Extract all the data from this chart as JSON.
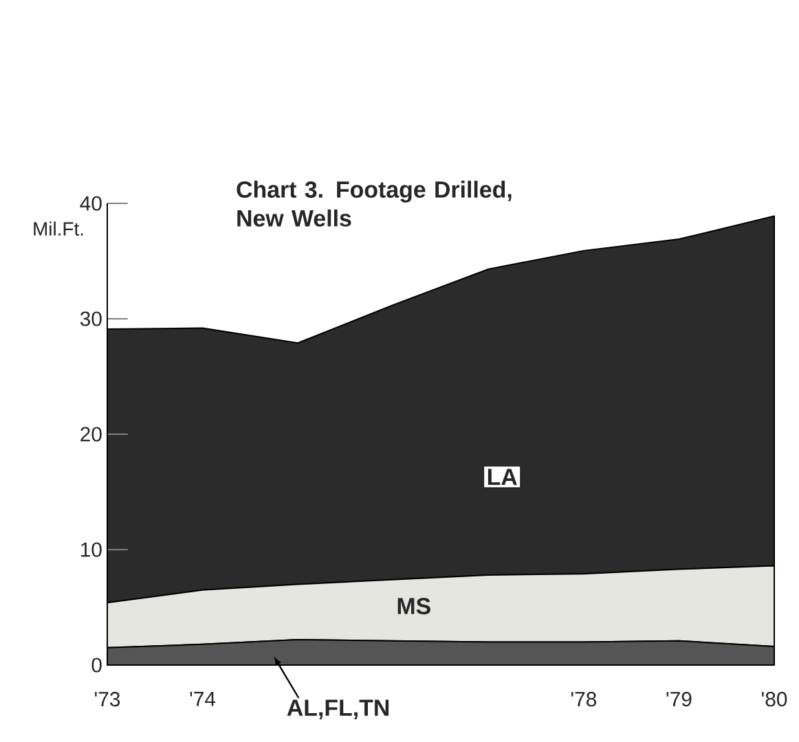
{
  "chart_data": {
    "type": "area",
    "stacked": true,
    "title": "Chart 3. Footage Drilled, New Wells",
    "ylabel": "Mil.Ft.",
    "x": [
      1973,
      1974,
      1975,
      1976,
      1977,
      1978,
      1979,
      1980
    ],
    "xlim": [
      1973,
      1980
    ],
    "ylim": [
      0,
      40
    ],
    "yticks": [
      0,
      10,
      20,
      30,
      40
    ],
    "xticks": [
      {
        "value": 1973,
        "label": "'73"
      },
      {
        "value": 1974,
        "label": "'74"
      },
      {
        "value": 1978,
        "label": "'78"
      },
      {
        "value": 1979,
        "label": "'79"
      },
      {
        "value": 1980,
        "label": "'80"
      }
    ],
    "series": [
      {
        "name": "AL,FL,TN",
        "color": "#555555",
        "values": [
          1.5,
          1.8,
          2.2,
          2.1,
          2.0,
          2.0,
          2.1,
          1.6
        ]
      },
      {
        "name": "MS",
        "color": "#e6e6e0",
        "values": [
          3.9,
          4.7,
          4.8,
          5.3,
          5.8,
          5.9,
          6.2,
          7.0
        ]
      },
      {
        "name": "LA",
        "color": "#2b2b2b",
        "values": [
          23.7,
          22.7,
          20.9,
          23.8,
          26.5,
          28.0,
          28.6,
          30.3
        ]
      }
    ]
  }
}
